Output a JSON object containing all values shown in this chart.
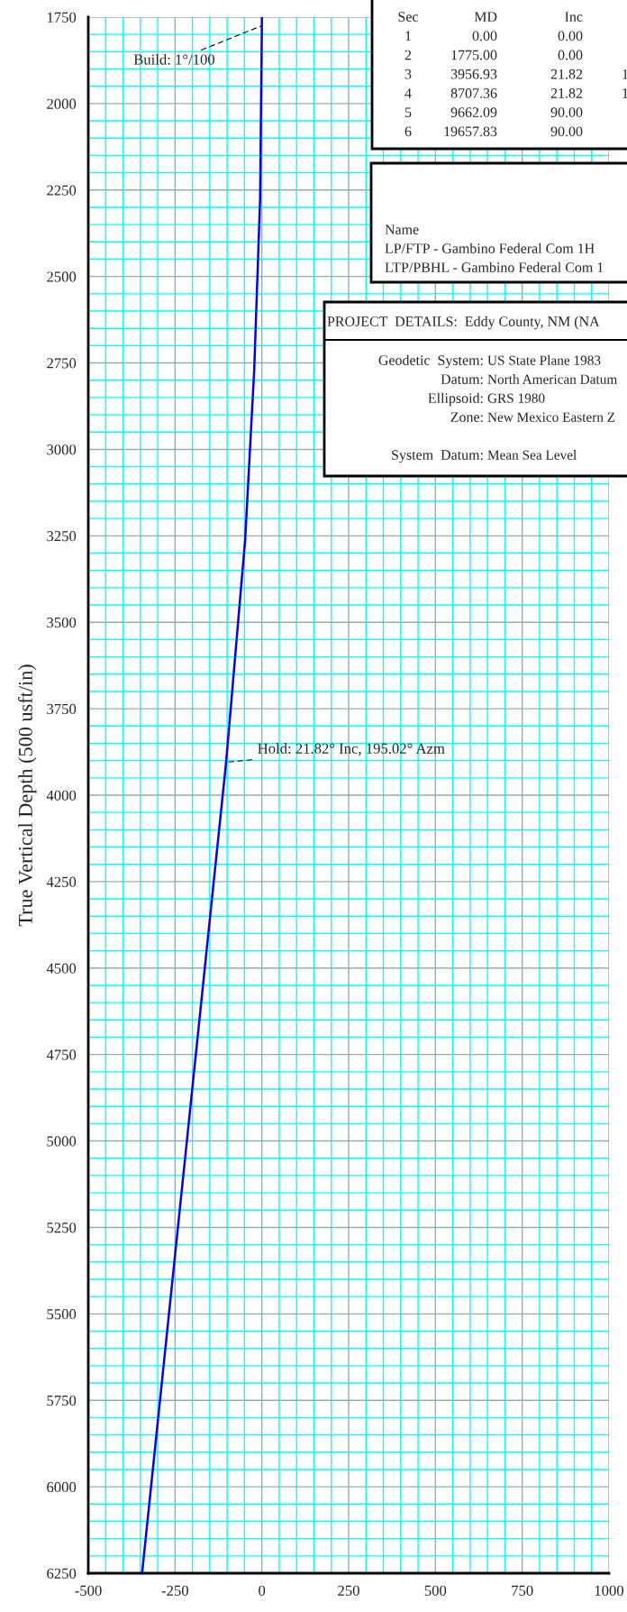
{
  "chart_data": {
    "type": "line",
    "ylabel": "True Vertical Depth (500 usft/in)",
    "x": [
      0,
      0,
      -5,
      -22,
      -48,
      -103,
      -345
    ],
    "series": [
      {
        "color": "#0000ff",
        "values": [
          1750,
          1775,
          2275,
          2770,
          3260,
          3905,
          6250
        ]
      }
    ],
    "xlim": [
      -500,
      1000
    ],
    "ylim": [
      6250,
      1750
    ],
    "xticks": [
      -500,
      {
        "value": -450,
        "label": null
      },
      {
        "value": -400,
        "label": null
      },
      {
        "value": -350,
        "label": null
      },
      {
        "value": -300,
        "label": null
      },
      -250,
      {
        "value": -200,
        "label": null
      },
      {
        "value": -150,
        "label": null
      },
      {
        "value": -100,
        "label": null
      },
      {
        "value": -50,
        "label": null
      },
      0,
      {
        "value": 50,
        "label": null
      },
      {
        "value": 100,
        "label": null
      },
      {
        "value": 150,
        "label": null
      },
      {
        "value": 200,
        "label": null
      },
      250,
      {
        "value": 300,
        "label": null
      },
      {
        "value": 350,
        "label": null
      },
      {
        "value": 400,
        "label": null
      },
      {
        "value": 450,
        "label": null
      },
      500,
      {
        "value": 550,
        "label": null
      },
      {
        "value": 600,
        "label": null
      },
      {
        "value": 650,
        "label": null
      },
      {
        "value": 700,
        "label": null
      },
      750,
      {
        "value": 800,
        "label": null
      },
      {
        "value": 850,
        "label": null
      },
      {
        "value": 900,
        "label": null
      },
      {
        "value": 950,
        "label": null
      },
      1000
    ],
    "yticks": [
      1750,
      {
        "value": 1800,
        "label": null
      },
      {
        "value": 1850,
        "label": null
      },
      {
        "value": 1900,
        "label": null
      },
      {
        "value": 1950,
        "label": null
      },
      2000,
      {
        "value": 2050,
        "label": null
      },
      {
        "value": 2100,
        "label": null
      },
      {
        "value": 2150,
        "label": null
      },
      {
        "value": 2200,
        "label": null
      },
      2250,
      {
        "value": 2300,
        "label": null
      },
      {
        "value": 2350,
        "label": null
      },
      {
        "value": 2400,
        "label": null
      },
      {
        "value": 2450,
        "label": null
      },
      2500,
      {
        "value": 2550,
        "label": null
      },
      {
        "value": 2600,
        "label": null
      },
      {
        "value": 2650,
        "label": null
      },
      {
        "value": 2700,
        "label": null
      },
      2750,
      {
        "value": 2800,
        "label": null
      },
      {
        "value": 2850,
        "label": null
      },
      {
        "value": 2900,
        "label": null
      },
      {
        "value": 2950,
        "label": null
      },
      3000,
      {
        "value": 3050,
        "label": null
      },
      {
        "value": 3100,
        "label": null
      },
      {
        "value": 3150,
        "label": null
      },
      {
        "value": 3200,
        "label": null
      },
      3250,
      {
        "value": 3300,
        "label": null
      },
      {
        "value": 3350,
        "label": null
      },
      {
        "value": 3400,
        "label": null
      },
      {
        "value": 3450,
        "label": null
      },
      3500,
      {
        "value": 3550,
        "label": null
      },
      {
        "value": 3600,
        "label": null
      },
      {
        "value": 3650,
        "label": null
      },
      {
        "value": 3700,
        "label": null
      },
      3750,
      {
        "value": 3800,
        "label": null
      },
      {
        "value": 3850,
        "label": null
      },
      {
        "value": 3900,
        "label": null
      },
      {
        "value": 3950,
        "label": null
      },
      4000,
      {
        "value": 4050,
        "label": null
      },
      {
        "value": 4100,
        "label": null
      },
      {
        "value": 4150,
        "label": null
      },
      {
        "value": 4200,
        "label": null
      },
      4250,
      {
        "value": 4300,
        "label": null
      },
      {
        "value": 4350,
        "label": null
      },
      {
        "value": 4400,
        "label": null
      },
      {
        "value": 4450,
        "label": null
      },
      4500,
      {
        "value": 4550,
        "label": null
      },
      {
        "value": 4600,
        "label": null
      },
      {
        "value": 4650,
        "label": null
      },
      {
        "value": 4700,
        "label": null
      },
      4750,
      {
        "value": 4800,
        "label": null
      },
      {
        "value": 4850,
        "label": null
      },
      {
        "value": 4900,
        "label": null
      },
      {
        "value": 4950,
        "label": null
      },
      5000,
      {
        "value": 5050,
        "label": null
      },
      {
        "value": 5100,
        "label": null
      },
      {
        "value": 5150,
        "label": null
      },
      {
        "value": 5200,
        "label": null
      },
      5250,
      {
        "value": 5300,
        "label": null
      },
      {
        "value": 5350,
        "label": null
      },
      {
        "value": 5400,
        "label": null
      },
      {
        "value": 5450,
        "label": null
      },
      5500,
      {
        "value": 5550,
        "label": null
      },
      {
        "value": 5600,
        "label": null
      },
      {
        "value": 5650,
        "label": null
      },
      {
        "value": 5700,
        "label": null
      },
      5750,
      {
        "value": 5800,
        "label": null
      },
      {
        "value": 5850,
        "label": null
      },
      {
        "value": 5900,
        "label": null
      },
      {
        "value": 5950,
        "label": null
      },
      6000,
      {
        "value": 6050,
        "label": null
      },
      {
        "value": 6100,
        "label": null
      },
      {
        "value": 6150,
        "label": null
      },
      {
        "value": 6200,
        "label": null
      },
      6250
    ],
    "grid": true,
    "annotations": [
      {
        "text": "Build: 1°/100",
        "x": 0,
        "y": 1775
      },
      {
        "text": "Hold: 21.82° Inc, 195.02° Azm",
        "x": -103,
        "y": 3905
      },
      "Sec  MD  Inc",
      "1  0.00  0.00",
      "2  1775.00  0.00",
      "3  3956.93  21.82  1",
      "4  8707.36  21.82  1",
      "5  9662.09  90.00",
      "6  19657.83  90.00",
      "Name",
      "LP/FTP - Gambino Federal Com 1H",
      "LTP/PBHL - Gambino Federal Com 1",
      "PROJECT  DETAILS:  Eddy County, NM (NA",
      "Geodetic  System:  US State Plane 1983",
      "Datum:  North American Datum",
      "Ellipsoid:  GRS 1980",
      "Zone:  New Mexico Eastern Z",
      "System  Datum:  Mean Sea Level"
    ]
  }
}
